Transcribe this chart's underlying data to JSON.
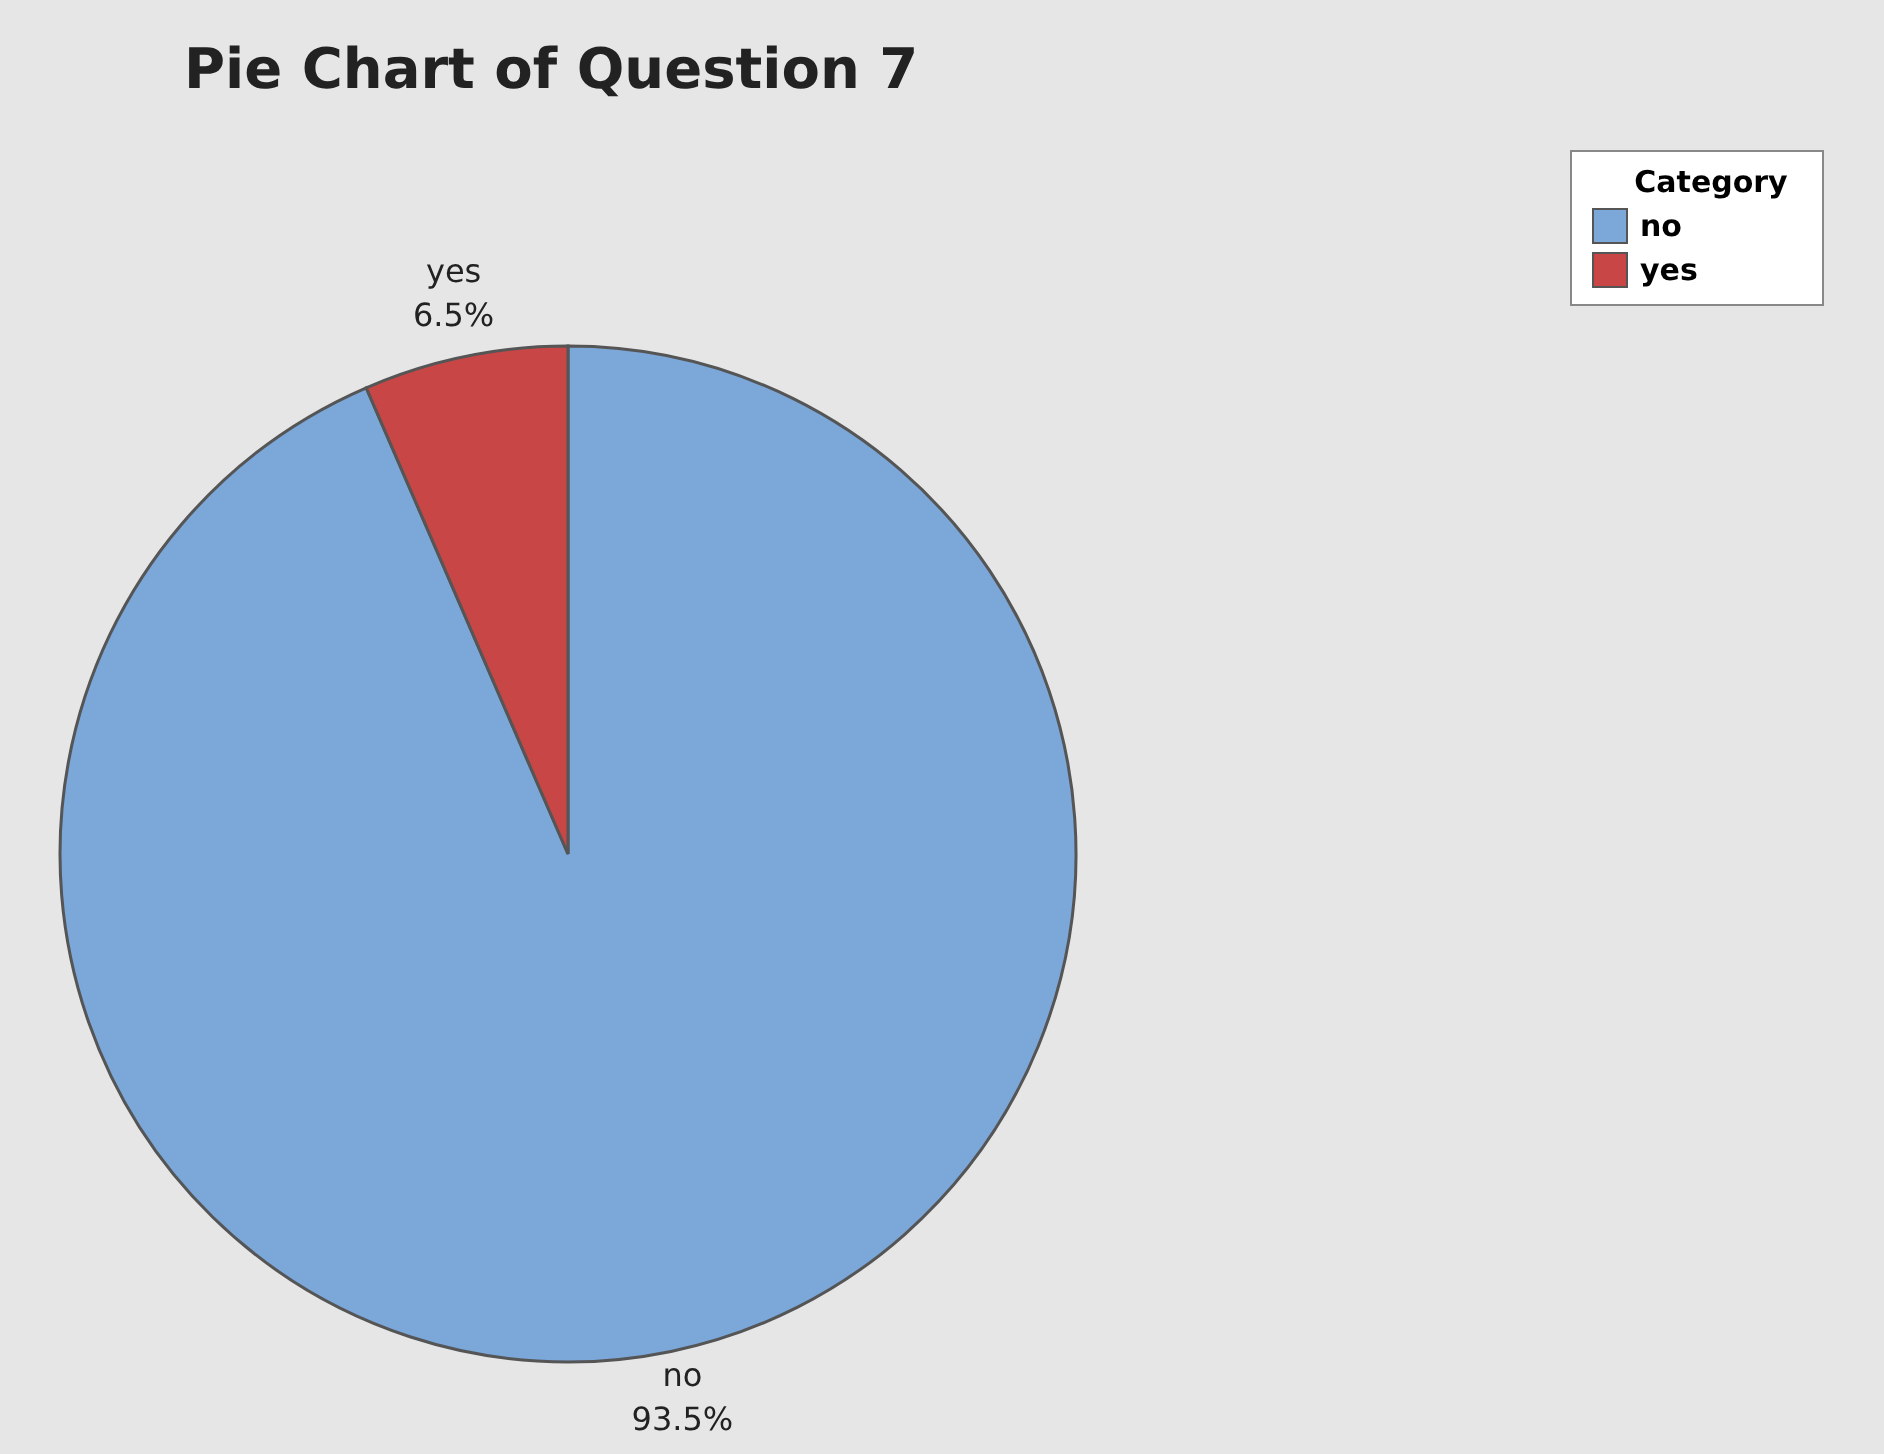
{
  "chart_data": {
    "type": "pie",
    "title": "Pie Chart of Question 7",
    "legend_title": "Category",
    "legend": "top right",
    "categories": [
      "no",
      "yes"
    ],
    "values": [
      93.5,
      6.5
    ],
    "value_labels": [
      "93.5%",
      "6.5%"
    ],
    "colors": [
      "#7ba7d9",
      "#c94646"
    ]
  }
}
